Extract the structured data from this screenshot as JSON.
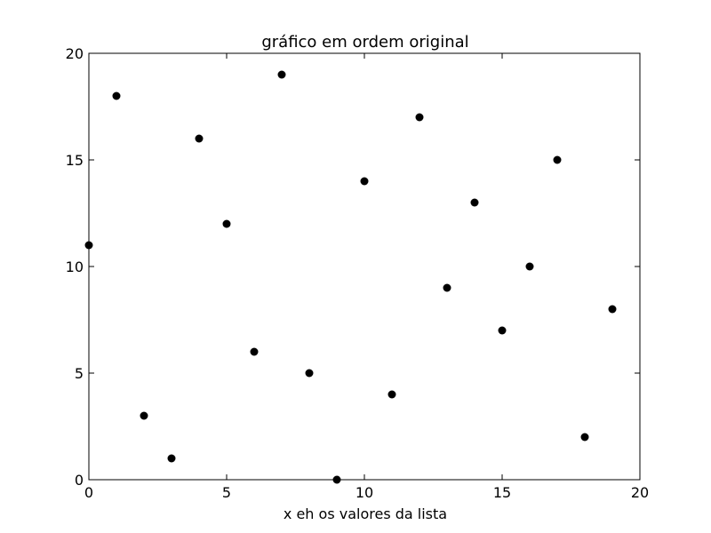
{
  "chart_data": {
    "type": "scatter",
    "title": "gráfico em ordem original",
    "xlabel": "x eh os valores da lista",
    "ylabel": "",
    "xlim": [
      0,
      20
    ],
    "ylim": [
      0,
      20
    ],
    "x_ticks": [
      "0",
      "5",
      "10",
      "15",
      "20"
    ],
    "y_ticks": [
      "0",
      "5",
      "10",
      "15",
      "20"
    ],
    "grid": false,
    "marker_color": "#000000",
    "series": [
      {
        "x": [
          0,
          1,
          2,
          3,
          4,
          5,
          6,
          7,
          8,
          9,
          10,
          11,
          12,
          13,
          14,
          15,
          16,
          17,
          18,
          19
        ],
        "y": [
          11,
          18,
          3,
          1,
          16,
          12,
          6,
          19,
          5,
          0,
          14,
          4,
          17,
          9,
          13,
          7,
          10,
          15,
          2,
          8
        ]
      }
    ]
  }
}
